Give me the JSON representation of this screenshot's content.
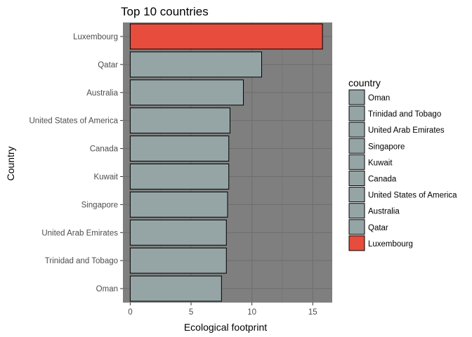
{
  "chart_data": {
    "type": "bar",
    "orientation": "horizontal",
    "title": "Top 10 countries",
    "xlabel": "Ecological footprint",
    "ylabel": "Country",
    "xlim": [
      -0.6,
      16.6
    ],
    "xticks": [
      0,
      5,
      10,
      15
    ],
    "grid": true,
    "legend_position": "right",
    "legend_title": "country",
    "categories": [
      "Luxembourg",
      "Qatar",
      "Australia",
      "United States of America",
      "Canada",
      "Kuwait",
      "Singapore",
      "United Arab Emirates",
      "Trinidad and Tobago",
      "Oman"
    ],
    "values": [
      15.8,
      10.8,
      9.3,
      8.2,
      8.1,
      8.1,
      8.0,
      7.9,
      7.9,
      7.5
    ],
    "legend_entries": [
      "Oman",
      "Trinidad and Tobago",
      "United Arab Emirates",
      "Singapore",
      "Kuwait",
      "Canada",
      "United States of America",
      "Australia",
      "Qatar",
      "Luxembourg"
    ],
    "highlight": "Luxembourg",
    "colors": {
      "panel": "#7f7f7f",
      "grid": "#6e6e6e",
      "bar": "#95a5a6",
      "highlight": "#e74c3c",
      "stroke": "#000000",
      "text": "#4d4d4d",
      "title": "#000000"
    }
  }
}
